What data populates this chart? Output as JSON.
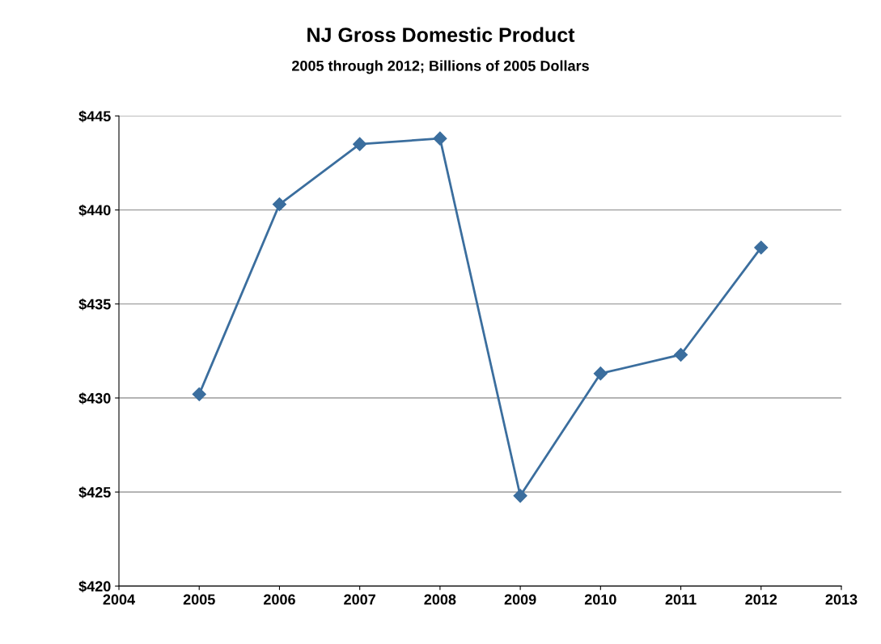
{
  "chart_data": {
    "type": "line",
    "title": "NJ Gross Domestic Product",
    "subtitle": "2005 through 2012; Billions of 2005 Dollars",
    "x": [
      2005,
      2006,
      2007,
      2008,
      2009,
      2010,
      2011,
      2012
    ],
    "series": [
      {
        "color": "#3b6e9e",
        "values": [
          430.2,
          440.3,
          443.5,
          443.8,
          424.8,
          431.3,
          432.3,
          438.0
        ]
      }
    ],
    "xlim": [
      2004,
      2013
    ],
    "xticks": [
      2004,
      2005,
      2006,
      2007,
      2008,
      2009,
      2010,
      2011,
      2012,
      2013
    ],
    "ylim": [
      420,
      445
    ],
    "yticks": [
      {
        "value": 420,
        "label": "$420"
      },
      {
        "value": 425,
        "label": "$425"
      },
      {
        "value": 430,
        "label": "$430"
      },
      {
        "value": 435,
        "label": "$435"
      },
      {
        "value": 440,
        "label": "$440"
      },
      {
        "value": 445,
        "label": "$445"
      }
    ],
    "grid": "y",
    "marker": "diamond",
    "line_style": "solid"
  }
}
